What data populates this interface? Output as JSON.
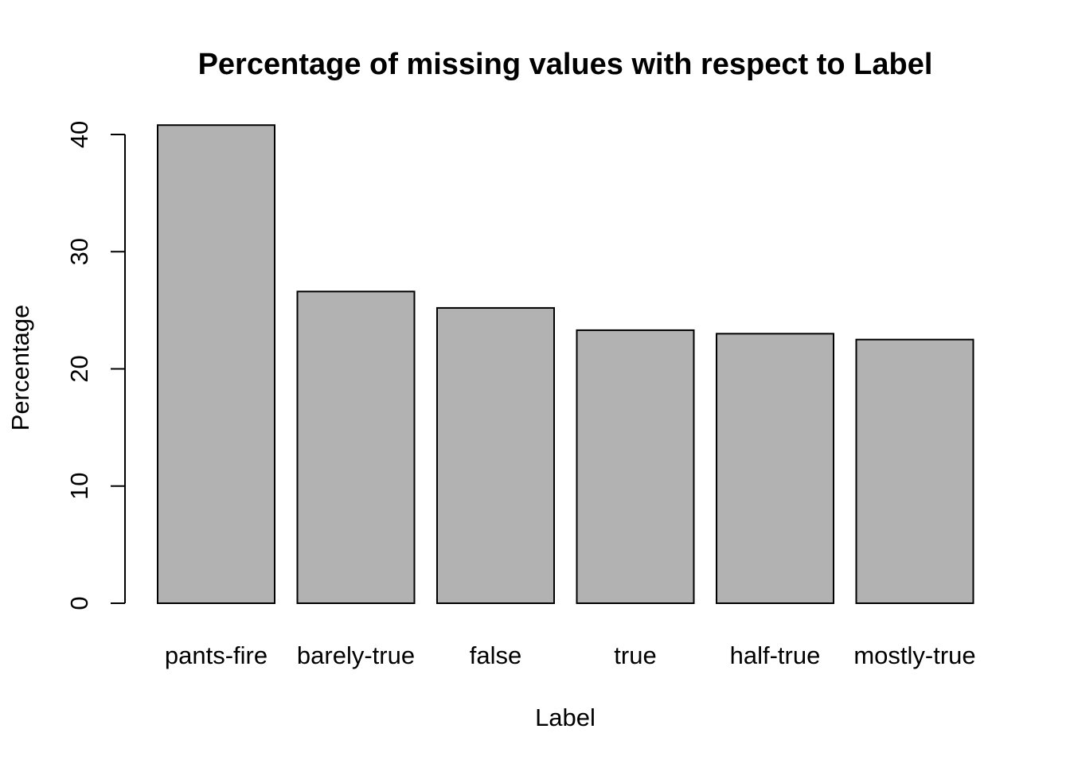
{
  "chart_data": {
    "type": "bar",
    "title": "Percentage of missing values with respect to Label",
    "xlabel": "Label",
    "ylabel": "Percentage",
    "categories": [
      "pants-fire",
      "barely-true",
      "false",
      "true",
      "half-true",
      "mostly-true"
    ],
    "values": [
      40.8,
      26.6,
      25.2,
      23.3,
      23.0,
      22.5
    ],
    "ylim": [
      0,
      40
    ],
    "yticks": [
      0,
      10,
      20,
      30,
      40
    ],
    "ytick_labels": [
      "0",
      "10",
      "20",
      "30",
      "40"
    ],
    "bar_color": "#b2b2b2",
    "grid": false,
    "legend": "none"
  }
}
